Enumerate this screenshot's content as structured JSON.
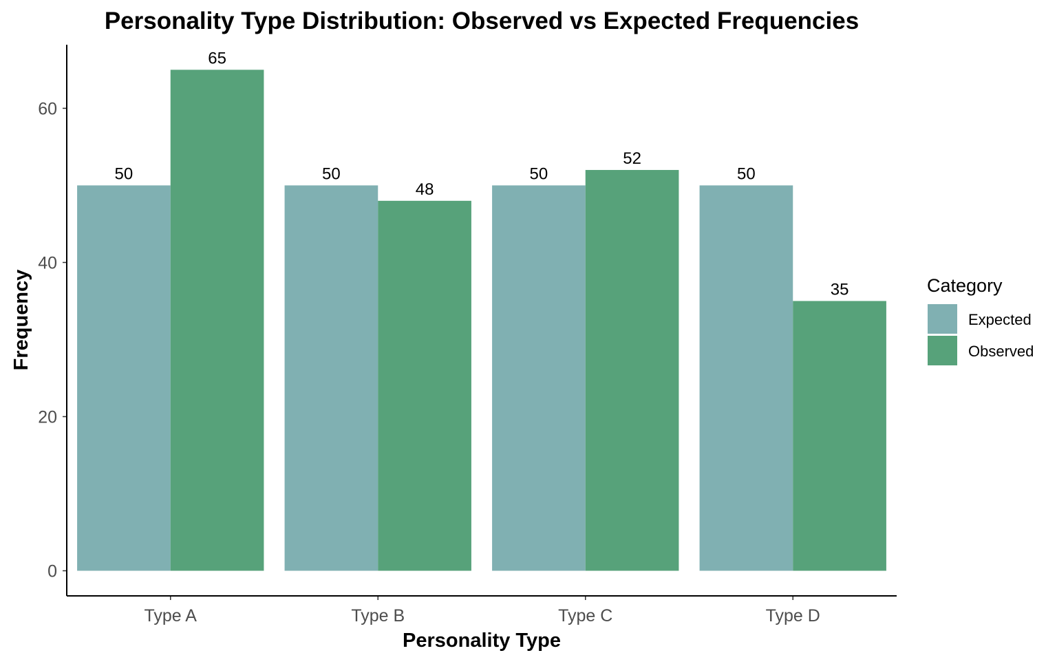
{
  "chart_data": {
    "type": "bar",
    "title": "Personality Type Distribution: Observed vs Expected Frequencies",
    "xlabel": "Personality Type",
    "ylabel": "Frequency",
    "categories": [
      "Type A",
      "Type B",
      "Type C",
      "Type D"
    ],
    "series": [
      {
        "name": "Expected",
        "values": [
          50,
          50,
          50,
          50
        ],
        "color": "#80b0b2"
      },
      {
        "name": "Observed",
        "values": [
          65,
          48,
          52,
          35
        ],
        "color": "#57a27a"
      }
    ],
    "ylim": [
      0,
      68.25
    ],
    "yticks": [
      0,
      20,
      40,
      60
    ],
    "grid": false,
    "legend": {
      "title": "Category",
      "position": "right"
    }
  }
}
